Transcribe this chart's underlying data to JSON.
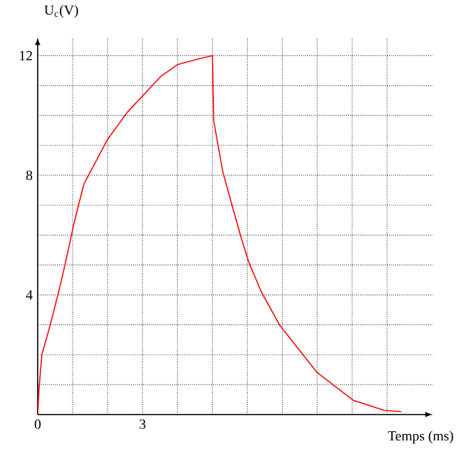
{
  "chart_data": {
    "type": "line",
    "xlabel": "Temps (ms)",
    "ylabel": "U$_{c}$(V)",
    "x": [
      0,
      0.04,
      0.12,
      0.36,
      0.6,
      0.8,
      1.04,
      1.32,
      2.0,
      2.56,
      3.52,
      4.0,
      4.64,
      5.0,
      5.04,
      5.3,
      5.8,
      6.04,
      6.4,
      6.92,
      8.0,
      9.04,
      9.92,
      10.4
    ],
    "series": [
      {
        "color": "#ff0000",
        "values": [
          0,
          0.9,
          2.0,
          3.0,
          4.1,
          5.1,
          6.4,
          7.7,
          9.2,
          10.1,
          11.3,
          11.7,
          11.9,
          12.0,
          9.8,
          8.1,
          6.0,
          5.1,
          4.1,
          3.0,
          1.4,
          0.47,
          0.14,
          0.1
        ]
      }
    ],
    "xlim": [
      0,
      11.3
    ],
    "ylim": [
      0,
      12.6
    ],
    "xticks": [
      {
        "value": 0,
        "label": "0"
      },
      {
        "value": 1,
        "label": null
      },
      {
        "value": 2,
        "label": null
      },
      3,
      {
        "value": 4,
        "label": null
      },
      {
        "value": 5,
        "label": null
      },
      {
        "value": 6,
        "label": null
      },
      {
        "value": 7,
        "label": null
      },
      {
        "value": 8,
        "label": null
      },
      {
        "value": 9,
        "label": null
      },
      {
        "value": 10,
        "label": null
      }
    ],
    "yticks": [
      {
        "value": 0,
        "label": null
      },
      {
        "value": 1,
        "label": null
      },
      {
        "value": 2,
        "label": null
      },
      {
        "value": 3,
        "label": null
      },
      4,
      {
        "value": 5,
        "label": null
      },
      {
        "value": 6,
        "label": null
      },
      {
        "value": 7,
        "label": null
      },
      8,
      {
        "value": 9,
        "label": null
      },
      {
        "value": 10,
        "label": null
      },
      {
        "value": 11,
        "label": null
      },
      12
    ],
    "grid": true
  }
}
